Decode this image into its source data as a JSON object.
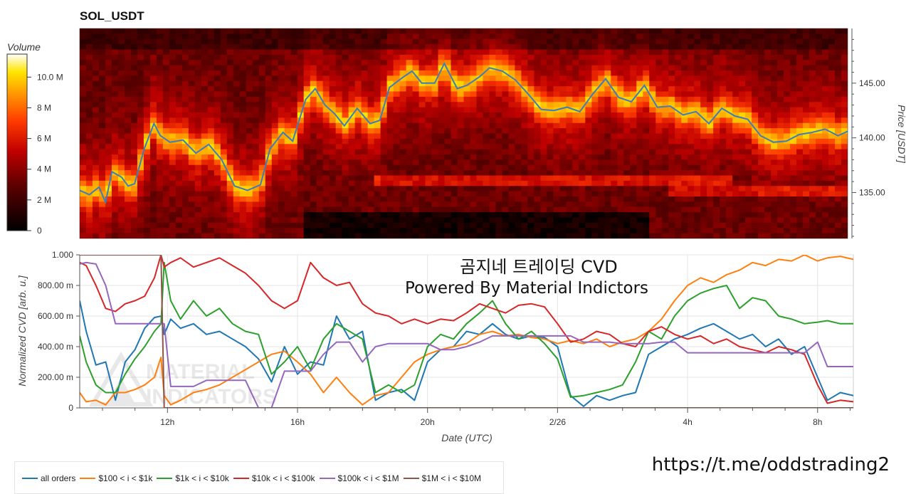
{
  "title": "SOL_USDT",
  "overlay_text": {
    "line1": "곰지네 트레이딩 CVD",
    "line2": "Powered By Material Indictors"
  },
  "watermark_logo": "MATERIAL INDICATORS",
  "url": "https://t.me/oddstrading2",
  "colors": {
    "price_line": "#3b7dbf",
    "all_orders": "#1f77b4",
    "r100_1k": "#ff7f0e",
    "r1k_10k": "#2ca02c",
    "r10k_100k": "#d62728",
    "r100k_1m": "#9467bd",
    "r1m_10m": "#8c564b"
  },
  "chart_data": [
    {
      "type": "heatmap",
      "title": "SOL_USDT",
      "colorbar": {
        "label": "Volume",
        "ticks": [
          "0",
          "2 M",
          "4 M",
          "6 M",
          "8 M",
          "10.0 M"
        ],
        "tick_values": [
          0,
          2,
          4,
          6,
          8,
          10
        ],
        "max": 11.5
      },
      "ylabel": "Price [USDT]",
      "yticks": [
        "135.00",
        "140.00",
        "145.00"
      ],
      "ytick_values": [
        135,
        140,
        145
      ],
      "ylim": [
        130.8,
        150.0
      ],
      "xlim": [
        9.3,
        33.1
      ],
      "price_line": {
        "x": [
          9.3,
          9.6,
          9.9,
          10.1,
          10.3,
          10.6,
          10.8,
          11.0,
          11.3,
          11.6,
          11.8,
          12.1,
          12.5,
          12.9,
          13.3,
          13.7,
          14.1,
          14.5,
          14.9,
          15.2,
          15.6,
          15.9,
          16.3,
          16.6,
          16.9,
          17.2,
          17.5,
          17.9,
          18.3,
          18.6,
          18.9,
          19.3,
          19.6,
          19.9,
          20.3,
          20.6,
          21.0,
          21.3,
          21.7,
          22.0,
          22.4,
          22.8,
          23.2,
          23.6,
          24.0,
          24.4,
          24.8,
          25.2,
          25.6,
          26.0,
          26.4,
          26.8,
          27.2,
          27.6,
          28.0,
          28.4,
          28.8,
          29.2,
          29.6,
          30.0,
          30.4,
          30.8,
          31.2,
          31.6,
          32.0,
          32.4,
          32.8,
          33.1
        ],
        "y": [
          135.2,
          134.8,
          135.5,
          134.1,
          136.9,
          136.4,
          135.6,
          135.8,
          139.0,
          141.3,
          140.2,
          139.6,
          139.8,
          138.6,
          139.4,
          138.0,
          135.6,
          135.2,
          135.7,
          139.0,
          140.5,
          139.7,
          143.5,
          144.5,
          143.0,
          142.2,
          141.1,
          142.7,
          141.3,
          141.6,
          144.6,
          145.5,
          146.1,
          145.0,
          145.0,
          146.8,
          144.5,
          144.8,
          145.6,
          146.4,
          146.1,
          145.3,
          144.0,
          142.6,
          142.5,
          142.8,
          142.4,
          144.0,
          145.4,
          143.7,
          143.3,
          144.8,
          142.8,
          142.9,
          142.1,
          142.4,
          141.3,
          142.7,
          142.0,
          141.7,
          140.2,
          139.6,
          139.7,
          140.3,
          140.5,
          140.8,
          140.2,
          140.6
        ]
      }
    },
    {
      "type": "line",
      "xlabel": "Date (UTC)",
      "ylabel": "Normalized CVD [arb. u.]",
      "x_tick_labels": [
        "12h",
        "16h",
        "20h",
        "2/26",
        "4h",
        "8h"
      ],
      "x_tick_values": [
        12,
        16,
        20,
        24,
        28,
        32
      ],
      "xlim": [
        9.3,
        33.1
      ],
      "yticks": [
        "0",
        "200.00 m",
        "400.00 m",
        "600.00 m",
        "800.00 m",
        "1.000"
      ],
      "ytick_values": [
        0,
        0.2,
        0.4,
        0.6,
        0.8,
        1.0
      ],
      "ylim": [
        0,
        1.0
      ],
      "grid": true,
      "legend_position": "bottom-left",
      "x": [
        9.3,
        9.5,
        9.8,
        10.1,
        10.4,
        10.7,
        11.0,
        11.3,
        11.6,
        11.8,
        11.9,
        12.1,
        12.4,
        12.8,
        13.2,
        13.6,
        14.0,
        14.4,
        14.8,
        15.2,
        15.6,
        16.0,
        16.4,
        16.8,
        17.2,
        17.6,
        18.0,
        18.4,
        18.8,
        19.2,
        19.6,
        20.0,
        20.4,
        20.8,
        21.2,
        21.6,
        22.0,
        22.4,
        22.8,
        23.2,
        23.6,
        24.0,
        24.4,
        24.8,
        25.2,
        25.6,
        26.0,
        26.4,
        26.8,
        27.2,
        27.6,
        28.0,
        28.4,
        28.8,
        29.2,
        29.6,
        30.0,
        30.4,
        30.8,
        31.2,
        31.6,
        32.0,
        32.3,
        32.7,
        33.1
      ],
      "series": [
        {
          "name": "all orders",
          "color": "#1f77b4",
          "values": [
            0.7,
            0.5,
            0.28,
            0.3,
            0.05,
            0.3,
            0.38,
            0.52,
            0.59,
            0.6,
            0.48,
            0.58,
            0.52,
            0.55,
            0.48,
            0.5,
            0.45,
            0.4,
            0.32,
            0.17,
            0.4,
            0.22,
            0.3,
            0.28,
            0.6,
            0.45,
            0.5,
            0.05,
            0.1,
            0.12,
            0.05,
            0.3,
            0.38,
            0.4,
            0.5,
            0.48,
            0.55,
            0.48,
            0.45,
            0.47,
            0.46,
            0.4,
            0.08,
            0.01,
            0.08,
            0.05,
            0.08,
            0.1,
            0.35,
            0.4,
            0.45,
            0.48,
            0.52,
            0.55,
            0.5,
            0.45,
            0.48,
            0.4,
            0.45,
            0.35,
            0.4,
            0.2,
            0.05,
            0.1,
            0.08
          ]
        },
        {
          "name": "$100 < i < $1k",
          "color": "#ff7f0e",
          "values": [
            0.1,
            0.04,
            0.05,
            0.02,
            0.1,
            0.1,
            0.12,
            0.15,
            0.2,
            0.33,
            0.08,
            0.02,
            0.05,
            0.1,
            0.12,
            0.15,
            0.2,
            0.25,
            0.3,
            0.35,
            0.37,
            0.3,
            0.22,
            0.1,
            0.2,
            0.1,
            0.02,
            0.08,
            0.1,
            0.2,
            0.3,
            0.35,
            0.38,
            0.4,
            0.42,
            0.48,
            0.5,
            0.47,
            0.48,
            0.46,
            0.45,
            0.42,
            0.44,
            0.42,
            0.45,
            0.4,
            0.43,
            0.45,
            0.5,
            0.58,
            0.7,
            0.8,
            0.85,
            0.82,
            0.87,
            0.9,
            0.95,
            0.93,
            0.97,
            0.96,
            1.0,
            0.96,
            0.98,
            0.99,
            0.97
          ]
        },
        {
          "name": "$1k < i < $10k",
          "color": "#2ca02c",
          "values": [
            0.47,
            0.3,
            0.15,
            0.1,
            0.1,
            0.22,
            0.32,
            0.4,
            0.5,
            0.55,
            0.95,
            0.7,
            0.58,
            0.7,
            0.6,
            0.65,
            0.55,
            0.5,
            0.48,
            0.22,
            0.3,
            0.4,
            0.25,
            0.45,
            0.55,
            0.5,
            0.45,
            0.1,
            0.15,
            0.1,
            0.15,
            0.4,
            0.48,
            0.45,
            0.55,
            0.62,
            0.7,
            0.55,
            0.45,
            0.5,
            0.42,
            0.32,
            0.07,
            0.08,
            0.1,
            0.12,
            0.15,
            0.3,
            0.5,
            0.45,
            0.6,
            0.7,
            0.75,
            0.78,
            0.8,
            0.65,
            0.72,
            0.7,
            0.6,
            0.58,
            0.55,
            0.56,
            0.57,
            0.55,
            0.55
          ]
        },
        {
          "name": "$10k < i < $100k",
          "color": "#d62728",
          "values": [
            0.95,
            0.93,
            0.8,
            0.65,
            0.63,
            0.68,
            0.7,
            0.73,
            0.85,
            1.0,
            0.92,
            0.95,
            0.98,
            0.92,
            0.95,
            0.98,
            0.93,
            0.88,
            0.8,
            0.7,
            0.65,
            0.7,
            0.95,
            0.85,
            0.8,
            0.82,
            0.68,
            0.62,
            0.6,
            0.55,
            0.58,
            0.55,
            0.58,
            0.57,
            0.62,
            0.68,
            0.65,
            0.62,
            0.67,
            0.68,
            0.66,
            0.55,
            0.43,
            0.45,
            0.5,
            0.48,
            0.42,
            0.4,
            0.5,
            0.53,
            0.48,
            0.45,
            0.47,
            0.42,
            0.45,
            0.4,
            0.38,
            0.36,
            0.4,
            0.38,
            0.35,
            0.15,
            0.03,
            0.05,
            0.04
          ]
        },
        {
          "name": "$100k < i < $1M",
          "color": "#9467bd",
          "values": [
            0.94,
            0.95,
            0.94,
            0.8,
            0.55,
            0.55,
            0.55,
            0.55,
            0.55,
            0.55,
            0.55,
            0.14,
            0.14,
            0.14,
            0.18,
            0.18,
            0.18,
            0.18,
            0.0,
            0.0,
            0.24,
            0.24,
            0.24,
            0.35,
            0.43,
            0.43,
            0.3,
            0.4,
            0.42,
            0.42,
            0.42,
            0.42,
            0.38,
            0.38,
            0.4,
            0.43,
            0.47,
            0.47,
            0.47,
            0.47,
            0.47,
            0.47,
            0.47,
            0.43,
            0.43,
            0.43,
            0.42,
            0.42,
            0.42,
            0.43,
            0.43,
            0.36,
            0.36,
            0.36,
            0.36,
            0.36,
            0.36,
            0.36,
            0.36,
            0.36,
            0.36,
            0.43,
            0.27,
            0.27,
            0.27
          ]
        },
        {
          "name": "$1M < i < $10M",
          "color": "#8c564b",
          "values": [
            1.0,
            1.0,
            1.0,
            1.0,
            1.0,
            1.0,
            1.0,
            1.0,
            1.0,
            1.0,
            0.0,
            0.0,
            0.0,
            0.0,
            0.0,
            0.0,
            0.0,
            0.0,
            0.0,
            0.0,
            0.0,
            0.0,
            0.0,
            0.0,
            0.0,
            0.0,
            0.0,
            0.0,
            0.0,
            0.0,
            0.0,
            0.0,
            0.0,
            0.0,
            0.0,
            0.0,
            0.0,
            0.0,
            0.0,
            0.0,
            0.0,
            0.0,
            0.0,
            0.0,
            0.0,
            0.0,
            0.0,
            0.0,
            0.0,
            0.0,
            0.0,
            0.0,
            0.0,
            0.0,
            0.0,
            0.0,
            0.0,
            0.0,
            0.0,
            0.0,
            0.0,
            0.0,
            0.0,
            0.0,
            0.0
          ]
        }
      ]
    }
  ]
}
